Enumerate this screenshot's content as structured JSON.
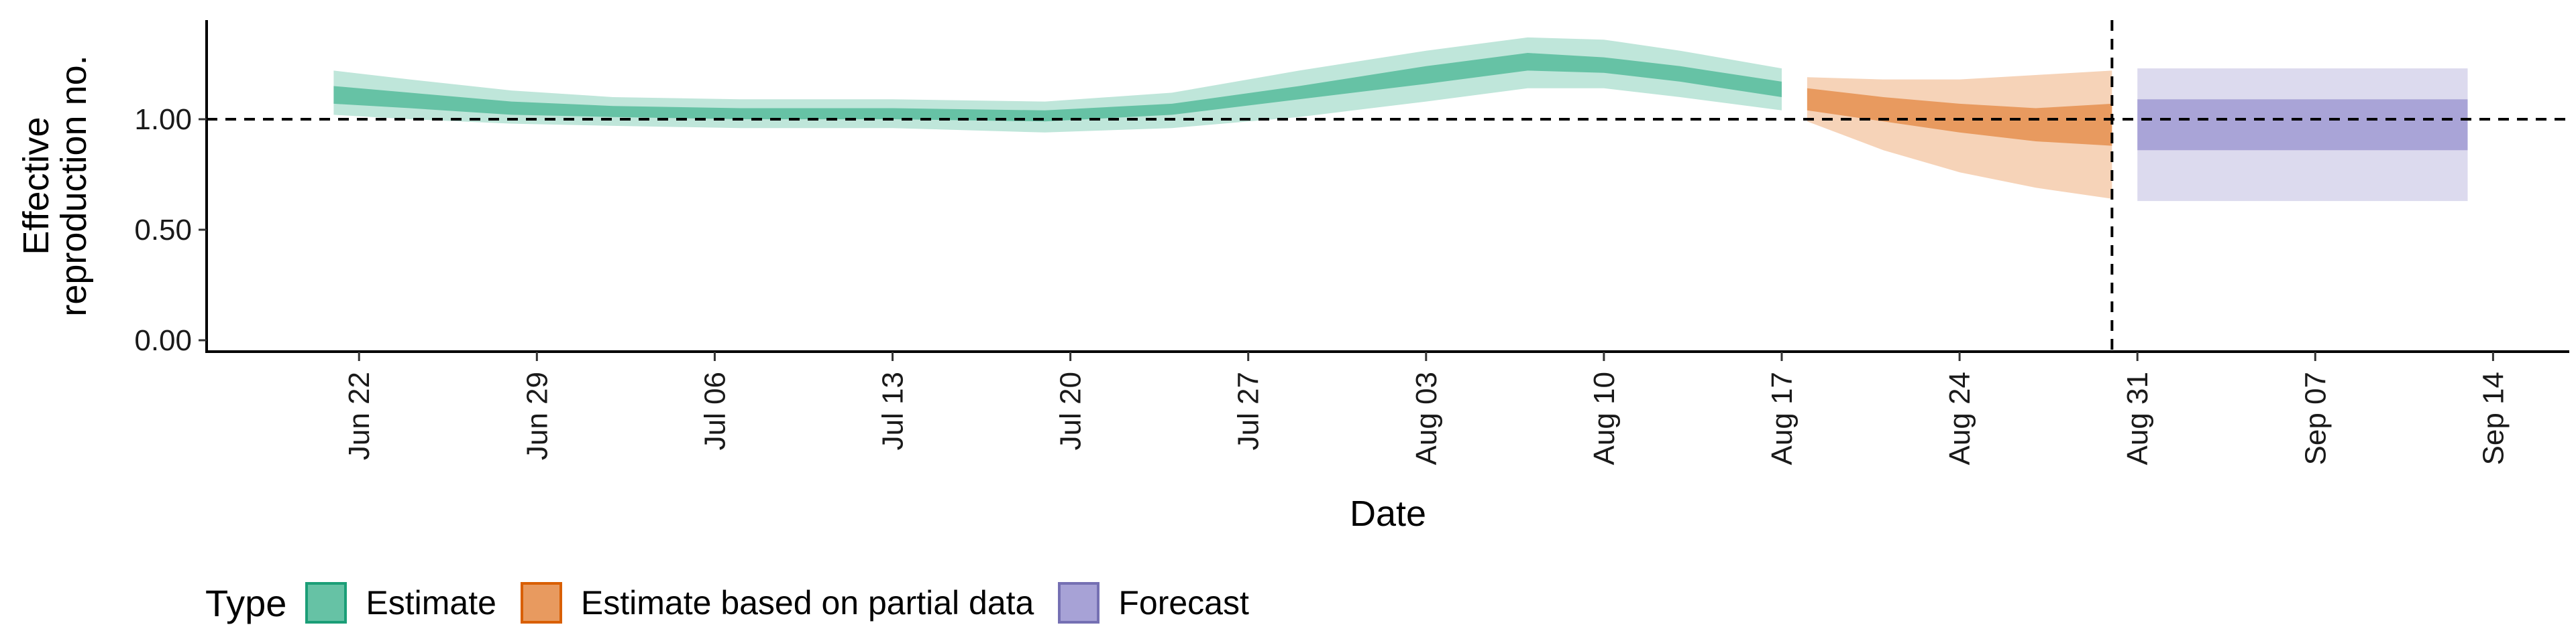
{
  "legend": {
    "title": "Type",
    "items": [
      {
        "label": "Estimate",
        "fill": "#66c2a5",
        "stroke": "#1b9e77"
      },
      {
        "label": "Estimate based on partial data",
        "fill": "#e89a5f",
        "stroke": "#d95f02"
      },
      {
        "label": "Forecast",
        "fill": "#a7a2d6",
        "stroke": "#7570b3"
      }
    ]
  },
  "colors": {
    "estimate_inner": "#66c2a5",
    "estimate_outer": "#bfe6da",
    "partial_inner": "#e89a5f",
    "partial_outer": "#f6d3b8",
    "forecast_inner": "#a9a4d7",
    "forecast_outer": "#dcdaee"
  },
  "chart_data": {
    "type": "area",
    "title": "",
    "xlabel": "Date",
    "ylabel": [
      "Effective",
      "reproduction no."
    ],
    "ylim": [
      0,
      1.45
    ],
    "yticks": [
      0,
      0.5,
      1.0
    ],
    "ytick_labels": [
      "0.00",
      "0.50",
      "1.00"
    ],
    "xlim": [
      "2020-06-16",
      "2020-09-17"
    ],
    "xticks": [
      "2020-06-22",
      "2020-06-29",
      "2020-07-06",
      "2020-07-13",
      "2020-07-20",
      "2020-07-27",
      "2020-08-03",
      "2020-08-10",
      "2020-08-17",
      "2020-08-24",
      "2020-08-31",
      "2020-09-07",
      "2020-09-14"
    ],
    "xtick_labels": [
      "Jun 22",
      "Jun 29",
      "Jul 06",
      "Jul 13",
      "Jul 20",
      "Jul 27",
      "Aug 03",
      "Aug 10",
      "Aug 17",
      "Aug 24",
      "Aug 31",
      "Sep 07",
      "Sep 14"
    ],
    "reference_hline": 1.0,
    "reference_vline": "2020-08-30",
    "series": [
      {
        "name": "Estimate",
        "points": [
          {
            "x": "2020-06-21",
            "lo90": 1.02,
            "lo50": 1.07,
            "hi50": 1.15,
            "hi90": 1.22
          },
          {
            "x": "2020-06-24",
            "lo90": 1.0,
            "lo50": 1.05,
            "hi50": 1.12,
            "hi90": 1.18
          },
          {
            "x": "2020-06-28",
            "lo90": 0.98,
            "lo50": 1.02,
            "hi50": 1.08,
            "hi90": 1.13
          },
          {
            "x": "2020-07-02",
            "lo90": 0.97,
            "lo50": 1.01,
            "hi50": 1.06,
            "hi90": 1.1
          },
          {
            "x": "2020-07-07",
            "lo90": 0.96,
            "lo50": 1.0,
            "hi50": 1.05,
            "hi90": 1.09
          },
          {
            "x": "2020-07-13",
            "lo90": 0.96,
            "lo50": 1.0,
            "hi50": 1.05,
            "hi90": 1.09
          },
          {
            "x": "2020-07-19",
            "lo90": 0.94,
            "lo50": 0.99,
            "hi50": 1.04,
            "hi90": 1.08
          },
          {
            "x": "2020-07-24",
            "lo90": 0.96,
            "lo50": 1.02,
            "hi50": 1.07,
            "hi90": 1.12
          },
          {
            "x": "2020-07-29",
            "lo90": 1.01,
            "lo50": 1.09,
            "hi50": 1.15,
            "hi90": 1.22
          },
          {
            "x": "2020-08-03",
            "lo90": 1.08,
            "lo50": 1.16,
            "hi50": 1.24,
            "hi90": 1.31
          },
          {
            "x": "2020-08-07",
            "lo90": 1.14,
            "lo50": 1.22,
            "hi50": 1.3,
            "hi90": 1.37
          },
          {
            "x": "2020-08-10",
            "lo90": 1.14,
            "lo50": 1.21,
            "hi50": 1.28,
            "hi90": 1.36
          },
          {
            "x": "2020-08-13",
            "lo90": 1.1,
            "lo50": 1.17,
            "hi50": 1.24,
            "hi90": 1.31
          },
          {
            "x": "2020-08-17",
            "lo90": 1.04,
            "lo50": 1.1,
            "hi50": 1.17,
            "hi90": 1.23
          }
        ]
      },
      {
        "name": "Estimate based on partial data",
        "points": [
          {
            "x": "2020-08-18",
            "lo90": 0.99,
            "lo50": 1.04,
            "hi50": 1.14,
            "hi90": 1.19
          },
          {
            "x": "2020-08-21",
            "lo90": 0.86,
            "lo50": 0.99,
            "hi50": 1.1,
            "hi90": 1.18
          },
          {
            "x": "2020-08-24",
            "lo90": 0.76,
            "lo50": 0.94,
            "hi50": 1.07,
            "hi90": 1.18
          },
          {
            "x": "2020-08-27",
            "lo90": 0.69,
            "lo50": 0.9,
            "hi50": 1.05,
            "hi90": 1.2
          },
          {
            "x": "2020-08-30",
            "lo90": 0.64,
            "lo50": 0.88,
            "hi50": 1.07,
            "hi90": 1.22
          }
        ]
      },
      {
        "name": "Forecast",
        "points": [
          {
            "x": "2020-08-31",
            "lo90": 0.63,
            "lo50": 0.86,
            "hi50": 1.09,
            "hi90": 1.23
          },
          {
            "x": "2020-09-13",
            "lo90": 0.63,
            "lo50": 0.86,
            "hi50": 1.09,
            "hi90": 1.23
          }
        ]
      }
    ]
  }
}
